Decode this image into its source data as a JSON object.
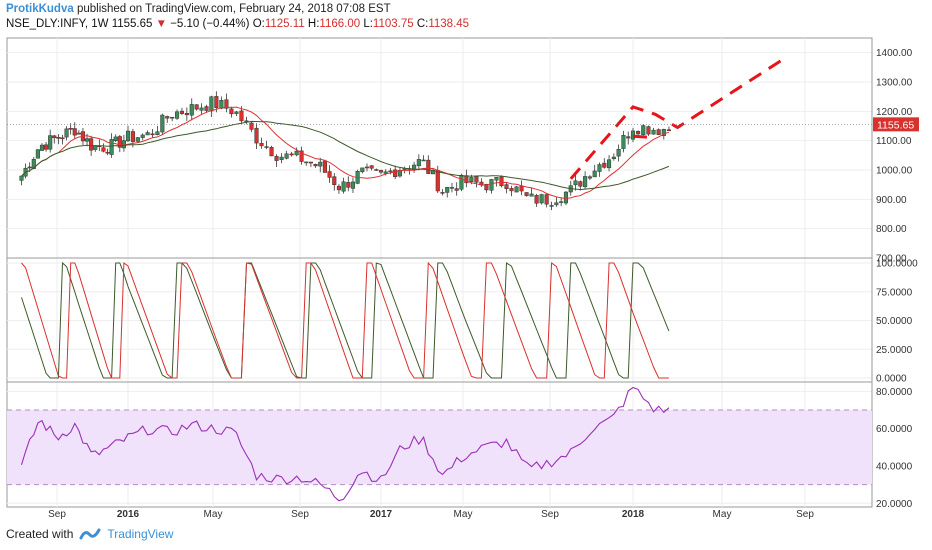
{
  "header": {
    "author": "ProtikKudva",
    "published_text": "published on TradingView.com, February 24, 2018 07:08 EST"
  },
  "symbol_bar": {
    "symbol": "NSE_DLY:INFY, 1W",
    "last": "1155.65",
    "change": "−5.10 (−0.44%)",
    "o_label": "O:",
    "o_val": "1125.11",
    "h_label": "H:",
    "h_val": "1166.00",
    "l_label": "L:",
    "l_val": "1103.75",
    "c_label": "C:",
    "c_val": "1138.45"
  },
  "footer": {
    "created_with": "Created with",
    "brand": "TradingView"
  },
  "colors": {
    "up": "#3c8c5a",
    "down": "#d9312e",
    "ma_fast": "#e03030",
    "ma_slow": "#3d5a2a",
    "rsi": "#9b30b8",
    "rsi_band": "#f1e2fb",
    "price_label": "#d9312e"
  },
  "chart_data": [
    {
      "type": "candlestick",
      "title": "NSE_DLY:INFY, 1W",
      "ylim": [
        700,
        1450
      ],
      "y_ticks": [
        "700.00",
        "800.00",
        "900.00",
        "1000.00",
        "1100.00",
        "1200.00",
        "1300.00",
        "1400.00"
      ],
      "x_tick_labels": [
        "Sep",
        "2016",
        "May",
        "Sep",
        "2017",
        "May",
        "Sep",
        "2018",
        "May",
        "Sep"
      ],
      "x_tick_dates": [
        "2015-09",
        "2016-01",
        "2016-05",
        "2016-09",
        "2017-01",
        "2017-05",
        "2017-09",
        "2018-01",
        "2018-05",
        "2018-09"
      ],
      "price_label": "1155.65",
      "close_anchors": [
        [
          "2015-07",
          980
        ],
        [
          "2015-08",
          1080
        ],
        [
          "2015-09",
          1110
        ],
        [
          "2015-10",
          1140
        ],
        [
          "2015-11",
          1080
        ],
        [
          "2015-12",
          1080
        ],
        [
          "2016-01",
          1110
        ],
        [
          "2016-02",
          1120
        ],
        [
          "2016-03",
          1190
        ],
        [
          "2016-04",
          1210
        ],
        [
          "2016-05",
          1230
        ],
        [
          "2016-06",
          1200
        ],
        [
          "2016-07",
          1110
        ],
        [
          "2016-08",
          1050
        ],
        [
          "2016-09",
          1040
        ],
        [
          "2016-10",
          1010
        ],
        [
          "2016-11",
          940
        ],
        [
          "2016-12",
          990
        ],
        [
          "2017-01",
          980
        ],
        [
          "2017-02",
          1010
        ],
        [
          "2017-03",
          1030
        ],
        [
          "2017-04",
          930
        ],
        [
          "2017-05",
          960
        ],
        [
          "2017-06",
          950
        ],
        [
          "2017-07",
          960
        ],
        [
          "2017-08",
          900
        ],
        [
          "2017-09",
          900
        ],
        [
          "2017-10",
          930
        ],
        [
          "2017-11",
          1000
        ],
        [
          "2017-12",
          1050
        ],
        [
          "2018-01",
          1150
        ],
        [
          "2018-02",
          1140
        ]
      ],
      "series": [
        {
          "name": "",
          "kind": "moving_average_fast"
        },
        {
          "name": "",
          "kind": "moving_average_slow"
        }
      ],
      "annotations": [
        {
          "kind": "dashed_trendline",
          "points": [
            [
              "2017-10",
              970
            ],
            [
              "2018-01",
              1215
            ],
            [
              "2018-02",
              1190
            ],
            [
              "2018-03",
              1145
            ],
            [
              "2018-08",
              1380
            ]
          ]
        },
        {
          "kind": "dashed_segment",
          "points": [
            [
              "2018-01",
              1115
            ],
            [
              "2018-02",
              1110
            ]
          ]
        }
      ]
    },
    {
      "type": "line",
      "title": "",
      "ylim": [
        0,
        100
      ],
      "y_ticks": [
        "0.0000",
        "25.0000",
        "50.0000",
        "75.0000",
        "100.0000"
      ],
      "series": [
        {
          "name": "",
          "color": "#3d5a2a"
        },
        {
          "name": "",
          "color": "#d9312e"
        }
      ]
    },
    {
      "type": "line",
      "title": "",
      "ylim": [
        18,
        85
      ],
      "y_ticks": [
        "20.0000",
        "40.0000",
        "60.0000",
        "80.0000"
      ],
      "band": [
        30,
        70
      ],
      "anchors": [
        [
          "2015-07",
          40
        ],
        [
          "2015-08",
          65
        ],
        [
          "2015-09",
          55
        ],
        [
          "2015-10",
          62
        ],
        [
          "2015-11",
          45
        ],
        [
          "2015-12",
          50
        ],
        [
          "2016-01",
          55
        ],
        [
          "2016-02",
          60
        ],
        [
          "2016-03",
          58
        ],
        [
          "2016-04",
          62
        ],
        [
          "2016-05",
          60
        ],
        [
          "2016-06",
          58
        ],
        [
          "2016-07",
          35
        ],
        [
          "2016-08",
          33
        ],
        [
          "2016-09",
          34
        ],
        [
          "2016-10",
          30
        ],
        [
          "2016-11",
          22
        ],
        [
          "2016-12",
          38
        ],
        [
          "2017-01",
          32
        ],
        [
          "2017-02",
          50
        ],
        [
          "2017-03",
          55
        ],
        [
          "2017-04",
          35
        ],
        [
          "2017-05",
          45
        ],
        [
          "2017-06",
          50
        ],
        [
          "2017-07",
          53
        ],
        [
          "2017-08",
          38
        ],
        [
          "2017-09",
          42
        ],
        [
          "2017-10",
          47
        ],
        [
          "2017-11",
          60
        ],
        [
          "2017-12",
          65
        ],
        [
          "2018-01",
          82
        ],
        [
          "2018-02",
          70
        ]
      ]
    }
  ]
}
